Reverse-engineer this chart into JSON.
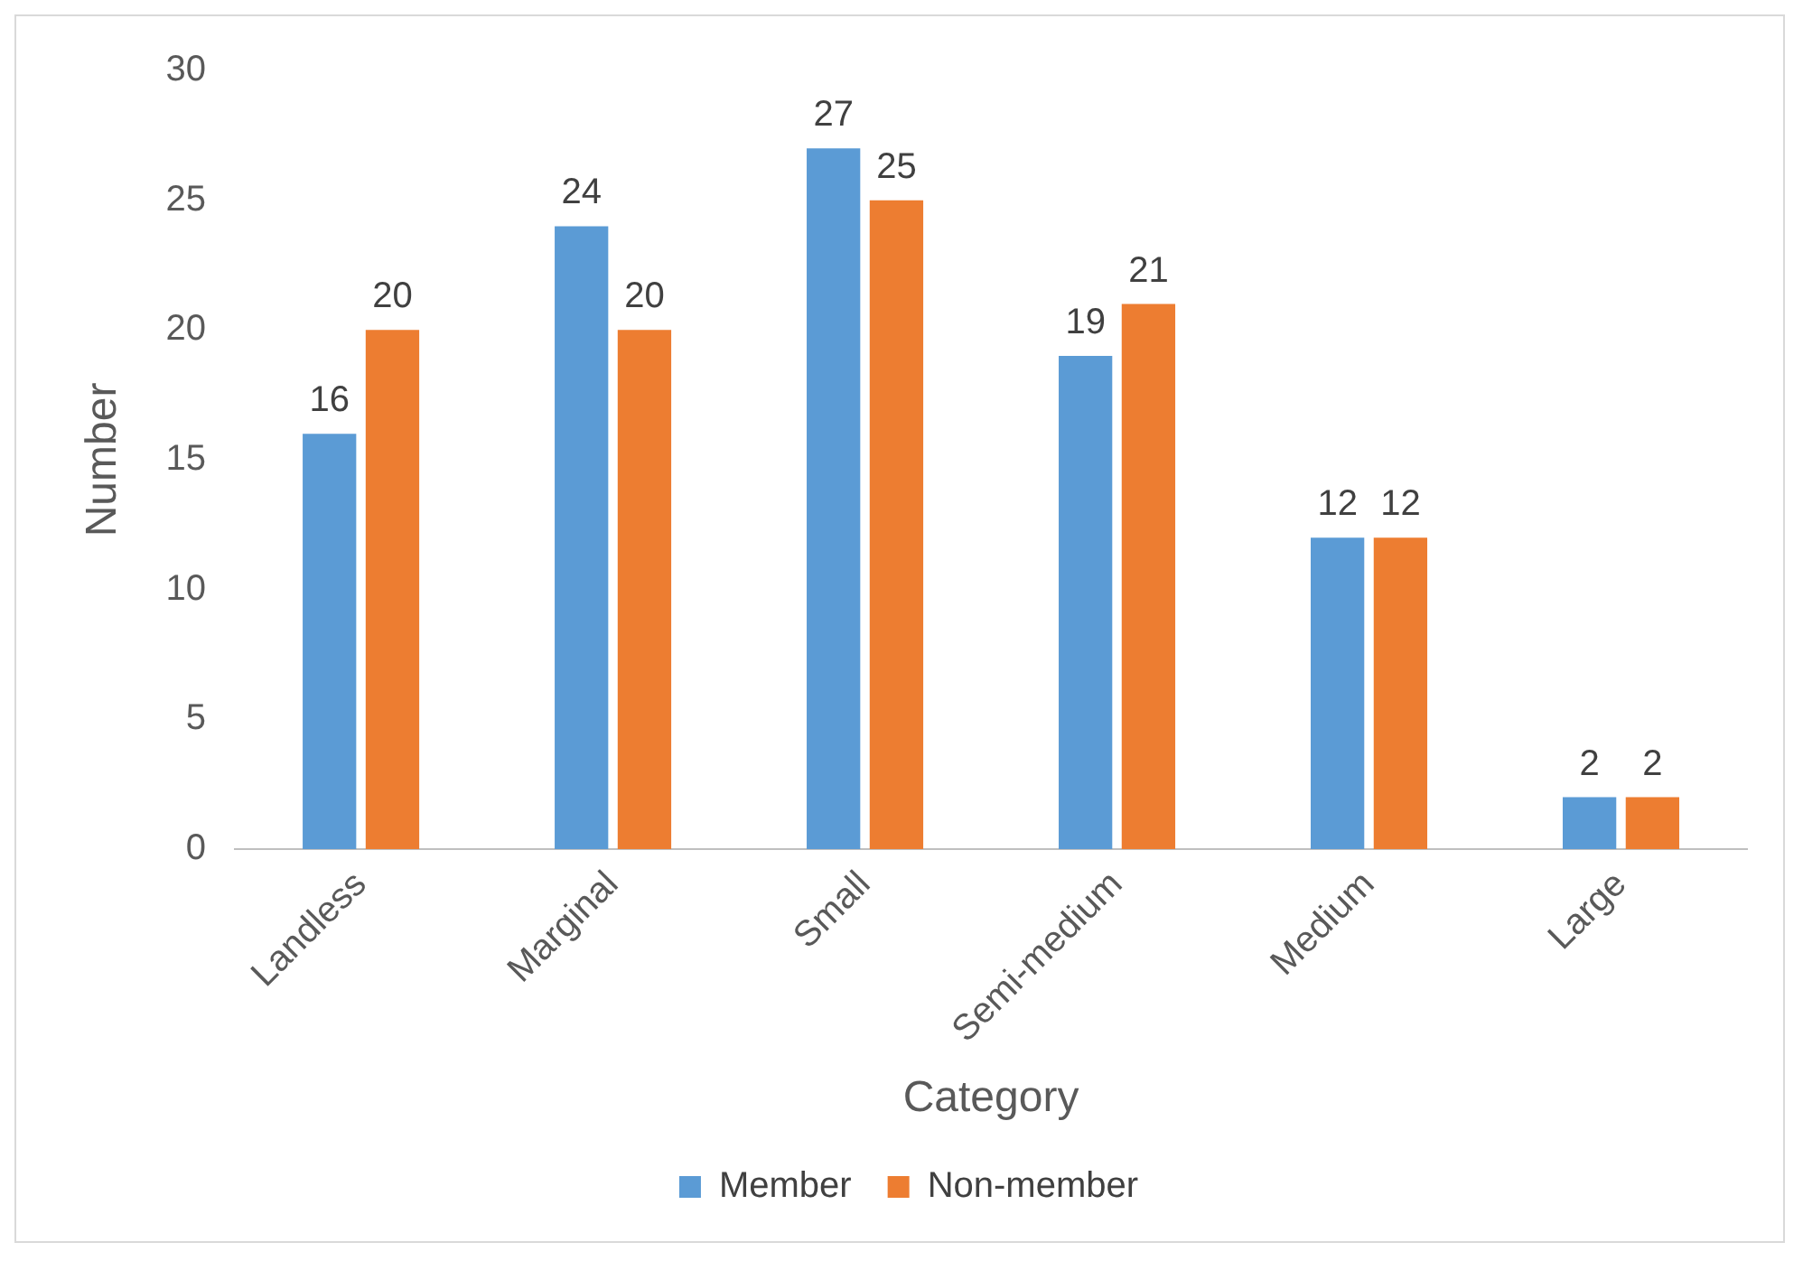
{
  "chart_data": {
    "type": "bar",
    "xlabel": "Category",
    "ylabel": "Number",
    "categories": [
      "Landless",
      "Marginal",
      "Small",
      "Semi-medium",
      "Medium",
      "Large"
    ],
    "series": [
      {
        "name": "Member",
        "color": "#5b9bd5",
        "values": [
          16,
          24,
          27,
          19,
          12,
          2
        ]
      },
      {
        "name": "Non-member",
        "color": "#ed7d31",
        "values": [
          20,
          20,
          25,
          21,
          12,
          2
        ]
      }
    ],
    "ylim": [
      0,
      30
    ],
    "yticks": [
      0,
      5,
      10,
      15,
      20,
      25,
      30
    ],
    "grid": false,
    "legend": "bottom",
    "data_labels": true
  }
}
